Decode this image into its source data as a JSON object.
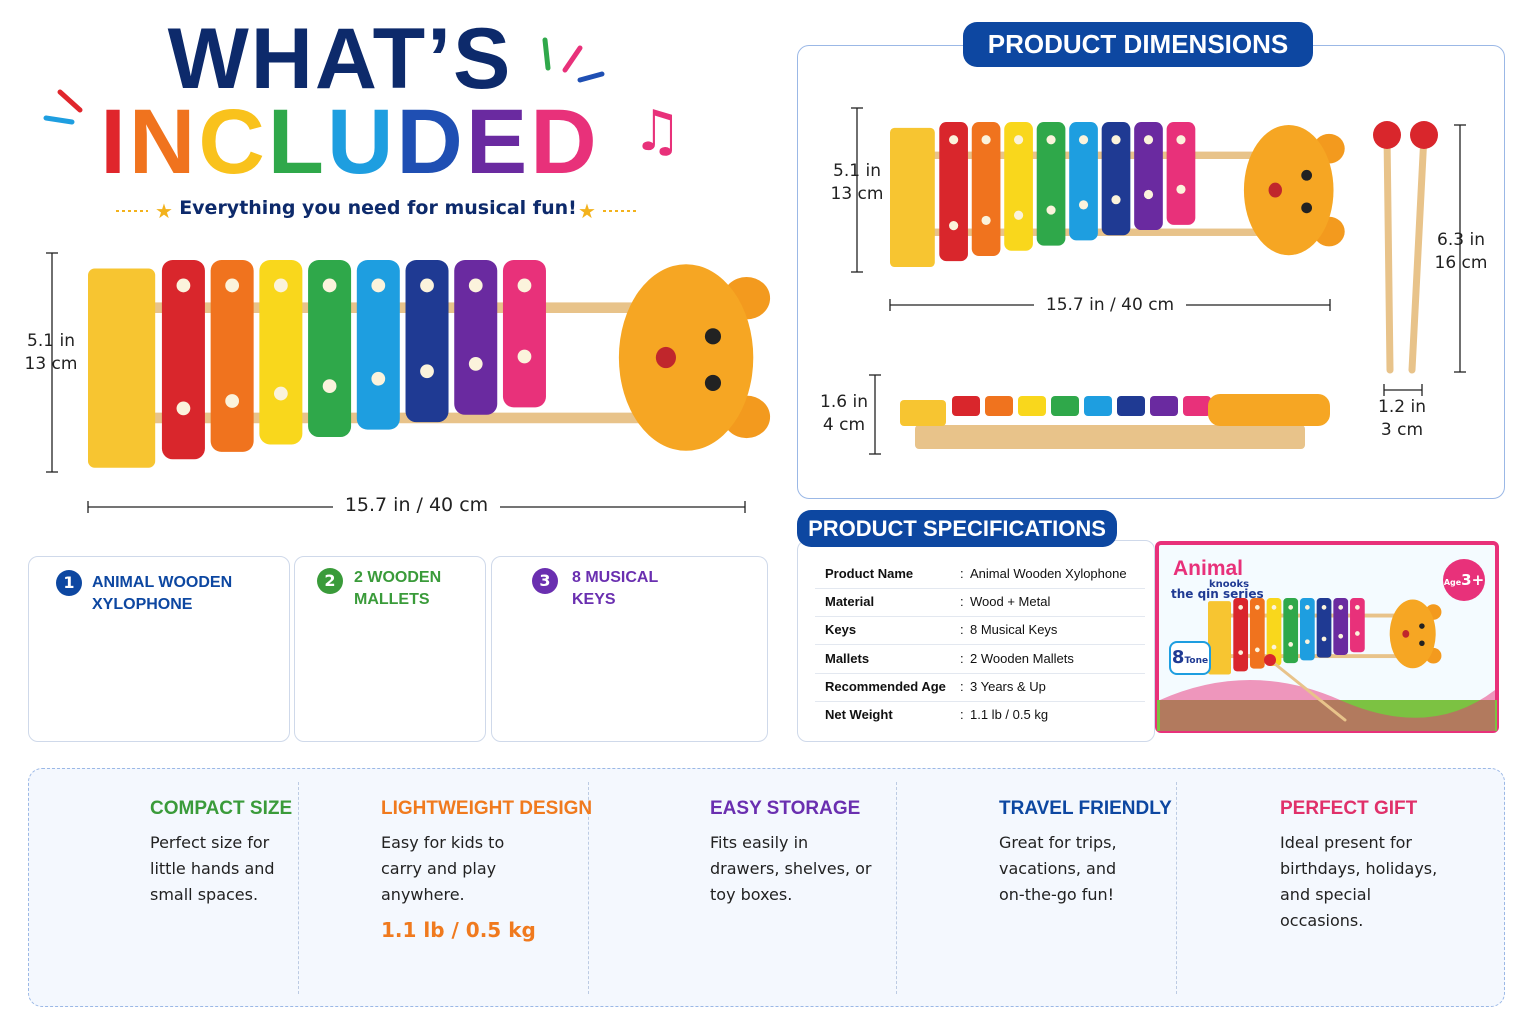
{
  "header": {
    "title_line1": "WHAT’S",
    "title_line2": "INCLUDED",
    "subtitle": "Everything you need for musical fun!"
  },
  "main_dimensions": {
    "height": [
      "5.1 in",
      "13 cm"
    ],
    "width": "15.7 in / 40 cm"
  },
  "included": [
    {
      "number": "1",
      "label": "ANIMAL WOODEN XYLOPHONE"
    },
    {
      "number": "2",
      "label": "2 WOODEN MALLETS"
    },
    {
      "number": "3",
      "label": "8 MUSICAL KEYS"
    }
  ],
  "product_dimensions": {
    "title": "PRODUCT DIMENSIONS",
    "height": [
      "5.1 in",
      "13 cm"
    ],
    "width": "15.7 in / 40 cm",
    "depth": [
      "1.6 in",
      "4 cm"
    ],
    "mallet_length": [
      "6.3 in",
      "16 cm"
    ],
    "mallet_width": [
      "1.2 in",
      "3 cm"
    ]
  },
  "specifications": {
    "title": "PRODUCT SPECIFICATIONS",
    "separator": ":",
    "rows": [
      [
        "Product Name",
        "Animal Wooden Xylophone"
      ],
      [
        "Material",
        "Wood + Metal"
      ],
      [
        "Keys",
        "8 Musical Keys"
      ],
      [
        "Mallets",
        "2 Wooden Mallets"
      ],
      [
        "Recommended Age",
        "3 Years & Up"
      ],
      [
        "Net Weight",
        "1.1 lb / 0.5 kg"
      ]
    ]
  },
  "box": {
    "brand": "Animal",
    "line1": "knooks",
    "line2": "the qin series",
    "tone_number": "8",
    "tone_label": "Tone",
    "age_label": "Age",
    "age": "3+"
  },
  "features": [
    {
      "title": "COMPACT SIZE",
      "text": "Perfect size for little hands and small spaces."
    },
    {
      "title": "LIGHTWEIGHT DESIGN",
      "text": "Easy for kids to carry and play anywhere.",
      "extra": "1.1 lb / 0.5 kg"
    },
    {
      "title": "EASY STORAGE",
      "text": "Fits easily in drawers, shelves, or toy boxes."
    },
    {
      "title": "TRAVEL FRIENDLY",
      "text": "Great for trips, vacations, and on-the-go fun!"
    },
    {
      "title": "PERFECT GIFT",
      "text": "Ideal present for birthdays, holidays, and special occasions."
    }
  ]
}
